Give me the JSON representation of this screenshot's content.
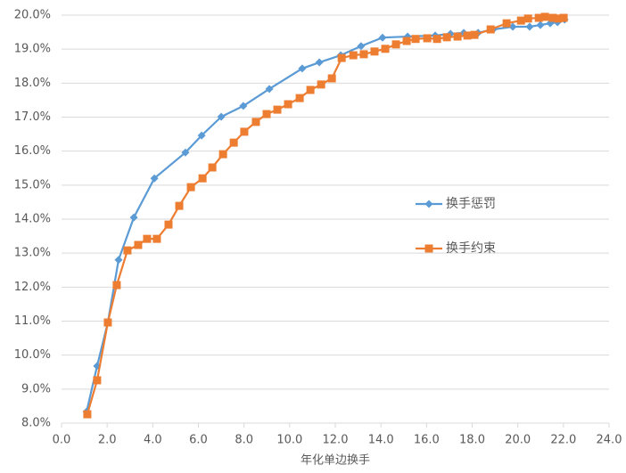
{
  "chart_data": {
    "type": "line",
    "x_label": "年化单边换手",
    "xlim": [
      0,
      24
    ],
    "xticks": [
      {
        "value": 0,
        "label": "0.0"
      },
      {
        "value": 2,
        "label": "2.0"
      },
      {
        "value": 4,
        "label": "4.0"
      },
      {
        "value": 6,
        "label": "6.0"
      },
      {
        "value": 8,
        "label": "8.0"
      },
      {
        "value": 10,
        "label": "10.0"
      },
      {
        "value": 12,
        "label": "12.0"
      },
      {
        "value": 14,
        "label": "14.0"
      },
      {
        "value": 16,
        "label": "16.0"
      },
      {
        "value": 18,
        "label": "18.0"
      },
      {
        "value": 20,
        "label": "20.0"
      },
      {
        "value": 22,
        "label": "22.0"
      },
      {
        "value": 24,
        "label": "24.0"
      }
    ],
    "ylim": [
      8,
      20
    ],
    "yticks": [
      {
        "value": 8,
        "label": "8.0%"
      },
      {
        "value": 9,
        "label": "9.0%"
      },
      {
        "value": 10,
        "label": "10.0%"
      },
      {
        "value": 11,
        "label": "11.0%"
      },
      {
        "value": 12,
        "label": "12.0%"
      },
      {
        "value": 13,
        "label": "13.0%"
      },
      {
        "value": 14,
        "label": "14.0%"
      },
      {
        "value": 15,
        "label": "15.0%"
      },
      {
        "value": 16,
        "label": "16.0%"
      },
      {
        "value": 17,
        "label": "17.0%"
      },
      {
        "value": 18,
        "label": "18.0%"
      },
      {
        "value": 19,
        "label": "19.0%"
      },
      {
        "value": 20,
        "label": "20.0%"
      }
    ],
    "grid": true,
    "legend": "right",
    "series": [
      {
        "name": "换手惩罚",
        "color": "#5b9bd5",
        "marker": "diamond",
        "x": [
          1.1,
          1.56,
          2.03,
          2.5,
          3.17,
          4.07,
          5.43,
          6.14,
          7.0,
          7.97,
          9.11,
          10.55,
          11.3,
          12.24,
          13.13,
          14.07,
          15.17,
          16.38,
          17.05,
          17.63,
          18.26,
          18.92,
          19.78,
          20.52,
          20.99,
          21.42,
          21.74,
          22.05
        ],
        "values": [
          8.34,
          9.68,
          10.96,
          12.8,
          14.05,
          15.2,
          15.96,
          16.46,
          17.01,
          17.33,
          17.83,
          18.43,
          18.61,
          18.82,
          19.09,
          19.34,
          19.37,
          19.4,
          19.45,
          19.48,
          19.48,
          19.58,
          19.66,
          19.66,
          19.71,
          19.76,
          19.79,
          19.87
        ]
      },
      {
        "name": "换手约束",
        "color": "#ed7d31",
        "marker": "square",
        "x": [
          1.13,
          1.56,
          2.03,
          2.42,
          2.89,
          3.36,
          3.75,
          4.18,
          4.69,
          5.16,
          5.67,
          6.18,
          6.61,
          7.08,
          7.55,
          8.01,
          8.52,
          8.99,
          9.46,
          9.93,
          10.44,
          10.91,
          11.38,
          11.85,
          12.28,
          12.79,
          13.25,
          13.72,
          14.19,
          14.66,
          15.13,
          15.52,
          16.03,
          16.46,
          16.89,
          17.36,
          17.79,
          18.1,
          18.81,
          19.51,
          20.14,
          20.45,
          20.92,
          21.19,
          21.54,
          21.77,
          22.01
        ],
        "values": [
          8.26,
          9.26,
          10.96,
          12.06,
          13.08,
          13.24,
          13.42,
          13.42,
          13.84,
          14.39,
          14.94,
          15.2,
          15.52,
          15.91,
          16.25,
          16.57,
          16.86,
          17.09,
          17.22,
          17.38,
          17.56,
          17.8,
          17.96,
          18.14,
          18.74,
          18.82,
          18.85,
          18.93,
          19.01,
          19.14,
          19.24,
          19.3,
          19.32,
          19.3,
          19.35,
          19.37,
          19.4,
          19.42,
          19.58,
          19.76,
          19.84,
          19.9,
          19.92,
          19.95,
          19.92,
          19.9,
          19.92
        ]
      }
    ]
  }
}
